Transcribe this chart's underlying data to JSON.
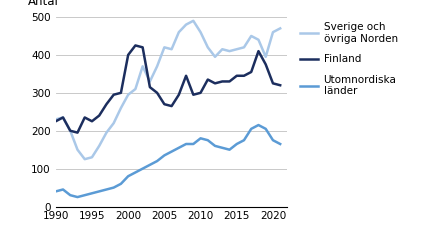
{
  "title": "",
  "ylabel": "Antal",
  "xlim": [
    1990,
    2022
  ],
  "ylim": [
    0,
    500
  ],
  "yticks": [
    0,
    100,
    200,
    300,
    400,
    500
  ],
  "xticks": [
    1990,
    1995,
    2000,
    2005,
    2010,
    2015,
    2020
  ],
  "legend": {
    "sverige": "Sverige och\növriga Norden",
    "finland": "Finland",
    "utomnordiska": "Utomnordiska\nländer"
  },
  "colors": {
    "sverige": "#aac8e8",
    "finland": "#1c2e5e",
    "utomnordiska": "#5b9bd5"
  },
  "years": [
    1990,
    1991,
    1992,
    1993,
    1994,
    1995,
    1996,
    1997,
    1998,
    1999,
    2000,
    2001,
    2002,
    2003,
    2004,
    2005,
    2006,
    2007,
    2008,
    2009,
    2010,
    2011,
    2012,
    2013,
    2014,
    2015,
    2016,
    2017,
    2018,
    2019,
    2020,
    2021
  ],
  "sverige_data": [
    230,
    235,
    200,
    150,
    125,
    130,
    160,
    195,
    220,
    260,
    295,
    310,
    370,
    330,
    370,
    420,
    415,
    460,
    480,
    490,
    460,
    420,
    395,
    415,
    410,
    415,
    420,
    450,
    440,
    395,
    460,
    470
  ],
  "finland_data": [
    225,
    235,
    200,
    195,
    235,
    225,
    240,
    270,
    295,
    300,
    400,
    425,
    420,
    315,
    300,
    270,
    265,
    295,
    345,
    295,
    300,
    335,
    325,
    330,
    330,
    345,
    345,
    355,
    410,
    375,
    325,
    320
  ],
  "utomnordiska_data": [
    40,
    45,
    30,
    25,
    30,
    35,
    40,
    45,
    50,
    60,
    80,
    90,
    100,
    110,
    120,
    135,
    145,
    155,
    165,
    165,
    180,
    175,
    160,
    155,
    150,
    165,
    175,
    205,
    215,
    205,
    175,
    165
  ]
}
